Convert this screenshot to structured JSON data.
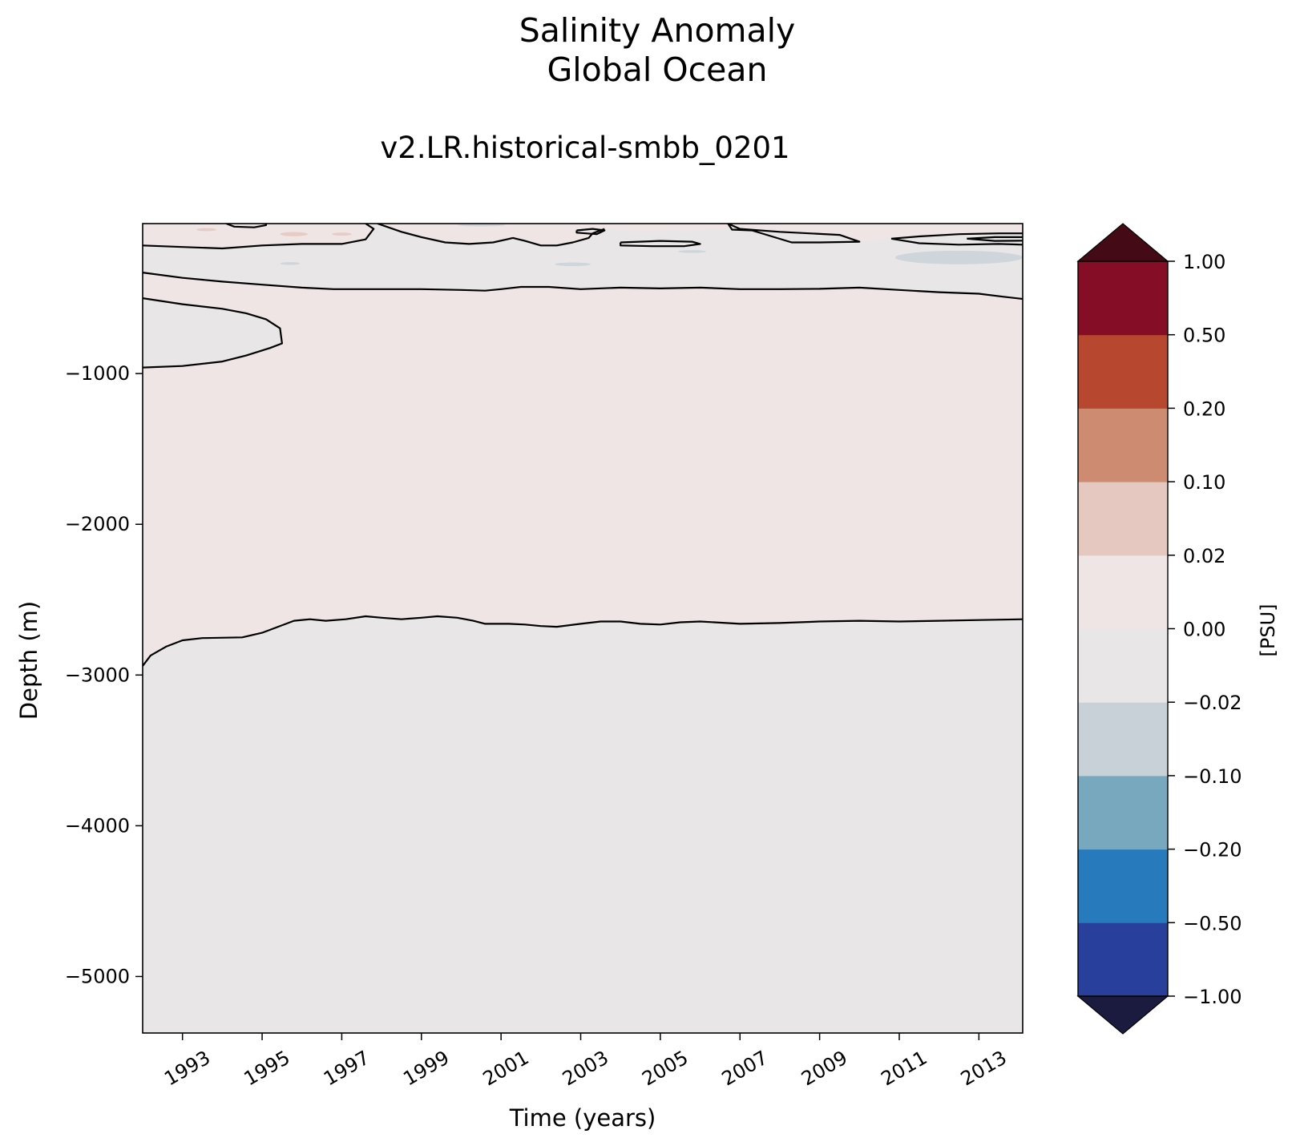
{
  "figure": {
    "title_line1": "Salinity Anomaly",
    "title_line2": "Global Ocean",
    "subtitle": "v2.LR.historical-smbb_0201"
  },
  "chart_data": {
    "type": "heatmap",
    "title": "Salinity Anomaly Global Ocean",
    "subtitle": "v2.LR.historical-smbb_0201",
    "xlabel": "Time (years)",
    "ylabel": "Depth (m)",
    "x_tick_labels": [
      "1993",
      "1995",
      "1997",
      "1999",
      "2001",
      "2003",
      "2005",
      "2007",
      "2009",
      "2011",
      "2013"
    ],
    "x_ticks": [
      1993,
      1995,
      1997,
      1999,
      2001,
      2003,
      2005,
      2007,
      2009,
      2011,
      2013
    ],
    "xlim": [
      1992.0,
      2014.1
    ],
    "y_tick_labels": [
      "−1000",
      "−2000",
      "−3000",
      "−4000",
      "−5000"
    ],
    "y_ticks": [
      -1000,
      -2000,
      -3000,
      -4000,
      -5000
    ],
    "ylim": [
      -5375,
      -5
    ],
    "colorbar": {
      "label": "[PSU]",
      "levels": [
        -1.0,
        -0.5,
        -0.2,
        -0.1,
        -0.02,
        0.0,
        0.02,
        0.1,
        0.2,
        0.5,
        1.0
      ],
      "tick_labels": [
        "−1.00",
        "−0.50",
        "−0.20",
        "−0.10",
        "−0.02",
        "0.00",
        "0.02",
        "0.10",
        "0.20",
        "0.50",
        "1.00"
      ],
      "colors": [
        "#283f9c",
        "#277abb",
        "#77a8bd",
        "#c9d1d8",
        "#e9e6e7",
        "#efe5e4",
        "#e5c8c0",
        "#cd8b72",
        "#b7482f",
        "#860d26"
      ],
      "under_color": "#1b1b40",
      "over_color": "#440a16",
      "extend": "both"
    },
    "regions": [
      {
        "class": "-0.02 to 0.00",
        "color": "#e9e6e7",
        "description_depth": "below contour near -2650 m"
      },
      {
        "class": "0.00 to 0.02",
        "color": "#efe5e4",
        "description_depth": "between about -450 m and -2650 m"
      },
      {
        "class": "-0.02 to 0.00",
        "color": "#e9e6e7",
        "description_depth": "upper ~450 m and lens near -700 m in 1992-1995"
      }
    ],
    "contours": [
      {
        "level": 0,
        "points": [
          [
            1992.0,
            -2940
          ],
          [
            1992.2,
            -2870
          ],
          [
            1992.6,
            -2810
          ],
          [
            1993.0,
            -2770
          ],
          [
            1993.5,
            -2755
          ],
          [
            1994.5,
            -2750
          ],
          [
            1995.0,
            -2720
          ],
          [
            1995.4,
            -2680
          ],
          [
            1995.8,
            -2640
          ],
          [
            1996.2,
            -2630
          ],
          [
            1996.6,
            -2640
          ],
          [
            1997.1,
            -2630
          ],
          [
            1997.6,
            -2610
          ],
          [
            1998.0,
            -2620
          ],
          [
            1998.5,
            -2630
          ],
          [
            1999.0,
            -2620
          ],
          [
            1999.4,
            -2610
          ],
          [
            1999.9,
            -2620
          ],
          [
            2000.3,
            -2640
          ],
          [
            2000.6,
            -2660
          ],
          [
            2001.2,
            -2660
          ],
          [
            2001.6,
            -2665
          ],
          [
            2002.0,
            -2675
          ],
          [
            2002.4,
            -2680
          ],
          [
            2003.0,
            -2660
          ],
          [
            2003.5,
            -2645
          ],
          [
            2004.0,
            -2645
          ],
          [
            2004.5,
            -2660
          ],
          [
            2005.0,
            -2665
          ],
          [
            2005.5,
            -2650
          ],
          [
            2006.0,
            -2645
          ],
          [
            2007.0,
            -2660
          ],
          [
            2008.0,
            -2655
          ],
          [
            2009.0,
            -2645
          ],
          [
            2010.0,
            -2640
          ],
          [
            2011.0,
            -2645
          ],
          [
            2012.0,
            -2640
          ],
          [
            2013.0,
            -2635
          ],
          [
            2014.1,
            -2630
          ]
        ]
      },
      {
        "level": 0,
        "points": [
          [
            1992.0,
            -960
          ],
          [
            1993.0,
            -950
          ],
          [
            1994.0,
            -920
          ],
          [
            1994.6,
            -880
          ],
          [
            1995.2,
            -830
          ],
          [
            1995.5,
            -800
          ],
          [
            1995.45,
            -700
          ],
          [
            1995.1,
            -640
          ],
          [
            1994.6,
            -600
          ],
          [
            1994.0,
            -570
          ],
          [
            1993.0,
            -540
          ],
          [
            1992.0,
            -500
          ]
        ]
      },
      {
        "level": 0,
        "points": [
          [
            1992.0,
            -330
          ],
          [
            1993.0,
            -365
          ],
          [
            1994.0,
            -390
          ],
          [
            1995.0,
            -410
          ],
          [
            1996.0,
            -430
          ],
          [
            1996.8,
            -440
          ],
          [
            1998.0,
            -440
          ],
          [
            1999.0,
            -440
          ],
          [
            2000.0,
            -445
          ],
          [
            2000.6,
            -450
          ],
          [
            2001.0,
            -440
          ],
          [
            2001.5,
            -425
          ],
          [
            2002.2,
            -425
          ],
          [
            2003.0,
            -440
          ],
          [
            2004.0,
            -430
          ],
          [
            2005.0,
            -435
          ],
          [
            2006.0,
            -430
          ],
          [
            2007.0,
            -440
          ],
          [
            2008.0,
            -440
          ],
          [
            2009.0,
            -438
          ],
          [
            2010.0,
            -430
          ],
          [
            2011.0,
            -445
          ],
          [
            2012.0,
            -460
          ],
          [
            2013.0,
            -470
          ],
          [
            2013.6,
            -490
          ],
          [
            2014.1,
            -505
          ]
        ]
      },
      {
        "level": 0,
        "points": [
          [
            1992.0,
            -150
          ],
          [
            1993.0,
            -160
          ],
          [
            1994.0,
            -170
          ],
          [
            1995.0,
            -150
          ],
          [
            1996.0,
            -140
          ],
          [
            1997.0,
            -140
          ],
          [
            1997.6,
            -110
          ],
          [
            1997.8,
            -40
          ],
          [
            1997.6,
            -5
          ]
        ]
      },
      {
        "level": 0,
        "points": [
          [
            1997.9,
            -5
          ],
          [
            1998.5,
            -60
          ],
          [
            1999.0,
            -95
          ],
          [
            1999.6,
            -130
          ],
          [
            2000.2,
            -140
          ],
          [
            2000.8,
            -130
          ],
          [
            2001.3,
            -100
          ],
          [
            2001.6,
            -120
          ],
          [
            2002.0,
            -150
          ],
          [
            2002.4,
            -150
          ],
          [
            2002.8,
            -130
          ],
          [
            2003.2,
            -100
          ],
          [
            2003.3,
            -70
          ],
          [
            2003.6,
            -40
          ]
        ]
      },
      {
        "level": 0,
        "points": [
          [
            1994.1,
            -5
          ],
          [
            1994.3,
            -25
          ],
          [
            1994.8,
            -30
          ],
          [
            1995.1,
            -15
          ],
          [
            1995.1,
            -5
          ]
        ]
      },
      {
        "level": 0,
        "points": [
          [
            2002.9,
            -50
          ],
          [
            2003.3,
            -40
          ],
          [
            2003.6,
            -50
          ],
          [
            2003.4,
            -75
          ],
          [
            2002.9,
            -65
          ],
          [
            2002.9,
            -50
          ]
        ]
      },
      {
        "level": 0,
        "points": [
          [
            2004.0,
            -130
          ],
          [
            2005.0,
            -120
          ],
          [
            2005.8,
            -125
          ],
          [
            2006.0,
            -140
          ],
          [
            2005.6,
            -155
          ],
          [
            2004.8,
            -155
          ],
          [
            2004.0,
            -150
          ],
          [
            2004.0,
            -130
          ]
        ]
      },
      {
        "level": 0,
        "points": [
          [
            2006.7,
            -5
          ],
          [
            2006.8,
            -45
          ],
          [
            2007.3,
            -50
          ],
          [
            2007.8,
            -90
          ],
          [
            2008.3,
            -130
          ],
          [
            2009.0,
            -130
          ],
          [
            2010.0,
            -125
          ],
          [
            2009.5,
            -80
          ],
          [
            2008.0,
            -60
          ],
          [
            2007.0,
            -40
          ],
          [
            2006.7,
            -5
          ]
        ]
      },
      {
        "level": 0,
        "points": [
          [
            2010.8,
            -105
          ],
          [
            2011.5,
            -90
          ],
          [
            2012.5,
            -75
          ],
          [
            2013.5,
            -70
          ],
          [
            2014.1,
            -70
          ]
        ]
      },
      {
        "level": 0,
        "points": [
          [
            2010.8,
            -105
          ],
          [
            2011.5,
            -135
          ],
          [
            2012.5,
            -145
          ],
          [
            2013.5,
            -140
          ],
          [
            2014.1,
            -145
          ]
        ]
      },
      {
        "level": 0,
        "points": [
          [
            2012.7,
            -105
          ],
          [
            2013.4,
            -95
          ],
          [
            2014.1,
            -95
          ]
        ]
      },
      {
        "level": 0,
        "points": [
          [
            2012.7,
            -105
          ],
          [
            2013.4,
            -120
          ],
          [
            2014.1,
            -118
          ]
        ]
      }
    ]
  }
}
